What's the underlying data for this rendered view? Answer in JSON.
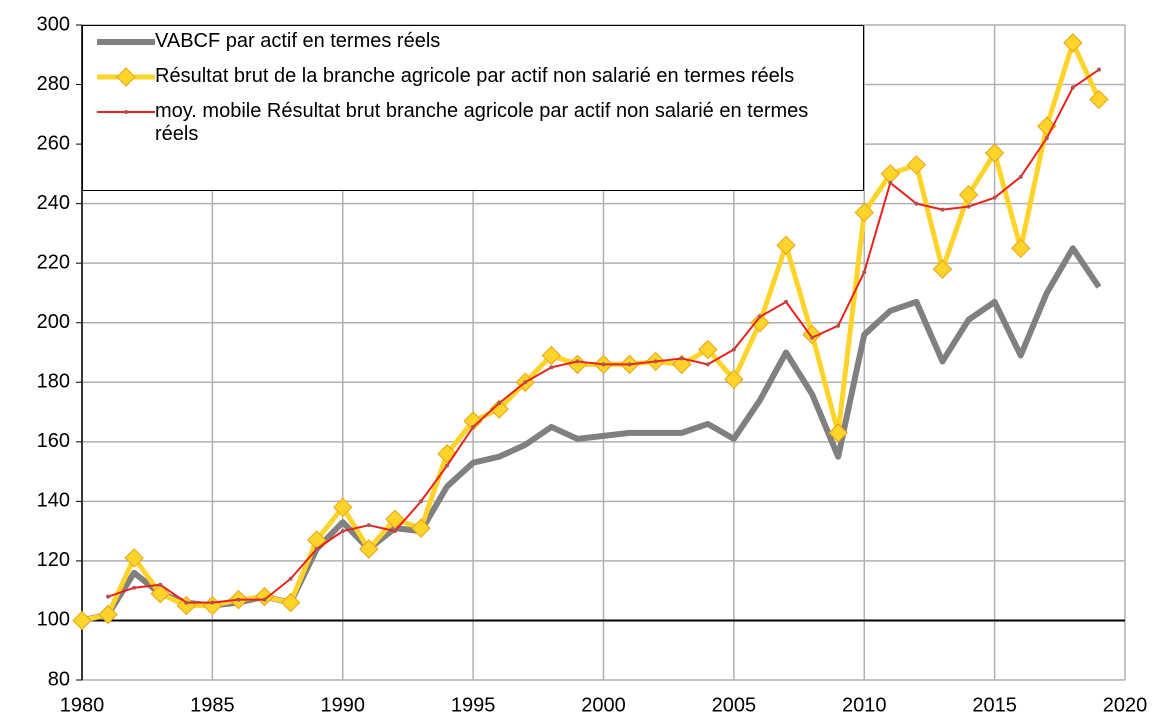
{
  "chart_data": {
    "type": "line",
    "x": [
      1980,
      1981,
      1982,
      1983,
      1984,
      1985,
      1986,
      1987,
      1988,
      1989,
      1990,
      1991,
      1992,
      1993,
      1994,
      1995,
      1996,
      1997,
      1998,
      1999,
      2000,
      2001,
      2002,
      2003,
      2004,
      2005,
      2006,
      2007,
      2008,
      2009,
      2010,
      2011,
      2012,
      2013,
      2014,
      2015,
      2016,
      2017,
      2018,
      2019
    ],
    "series": [
      {
        "name": "VABCF par actif en termes réels",
        "color": "#808080",
        "marker": "none",
        "values": [
          100,
          102,
          116,
          109,
          106,
          105,
          106,
          108,
          106,
          124,
          133,
          124,
          131,
          130,
          145,
          153,
          155,
          159,
          165,
          161,
          162,
          163,
          163,
          163,
          166,
          161,
          174,
          190,
          176,
          155,
          196,
          204,
          207,
          187,
          201,
          207,
          189,
          210,
          225,
          212
        ]
      },
      {
        "name": "Résultat brut de la branche agricole par actif non salarié en termes réels",
        "color": "#ffd42a",
        "marker": "diamond",
        "values": [
          100,
          102,
          121,
          109,
          105,
          105,
          107,
          108,
          106,
          127,
          138,
          124,
          134,
          131,
          156,
          167,
          171,
          180,
          189,
          186,
          186,
          186,
          187,
          186,
          191,
          181,
          200,
          226,
          196,
          163,
          237,
          250,
          253,
          218,
          243,
          257,
          225,
          266,
          294,
          275
        ]
      },
      {
        "name": "moy. mobile Résultat brut branche agricole par actif non salarié en termes réels",
        "color": "#e8231e",
        "marker": "dot",
        "values": [
          null,
          108,
          111,
          112,
          106,
          106,
          107,
          107,
          114,
          124,
          130,
          132,
          130,
          140,
          152,
          165,
          173,
          180,
          185,
          187,
          186,
          186,
          187,
          188,
          186,
          191,
          202,
          207,
          195,
          199,
          217,
          247,
          240,
          238,
          239,
          242,
          249,
          262,
          279,
          285
        ]
      }
    ],
    "xlim": [
      1980,
      2020
    ],
    "xticks": [
      1980,
      1985,
      1990,
      1995,
      2000,
      2005,
      2010,
      2015,
      2020
    ],
    "ylim": [
      80,
      300
    ],
    "yticks": [
      80,
      100,
      120,
      140,
      160,
      180,
      200,
      220,
      240,
      260,
      280,
      300
    ],
    "x_axis_crosses": 100,
    "grid": true,
    "legend": "top-left"
  }
}
